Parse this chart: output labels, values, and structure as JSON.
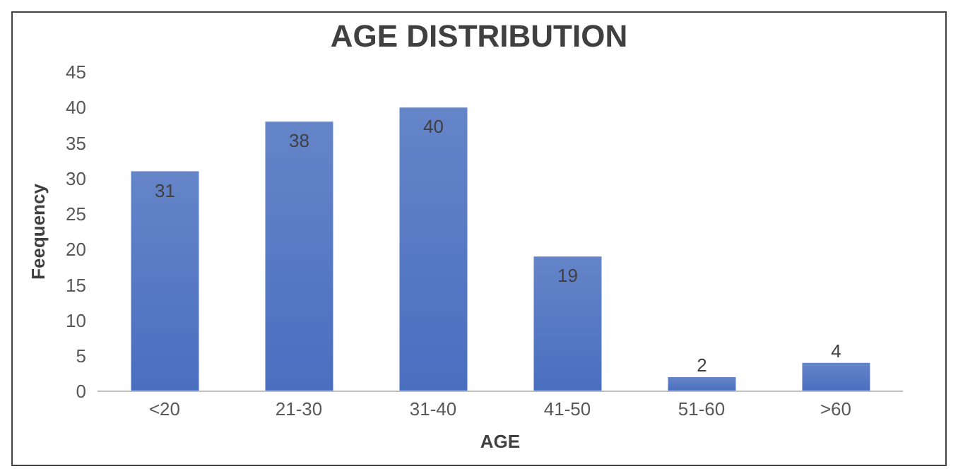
{
  "chart_data": {
    "type": "bar",
    "title": "AGE DISTRIBUTION",
    "xlabel": "AGE",
    "ylabel": "Feequency",
    "categories": [
      "<20",
      "21-30",
      "31-40",
      "41-50",
      "51-60",
      ">60"
    ],
    "values": [
      31,
      38,
      40,
      19,
      2,
      4
    ],
    "color": "#4a6fbf",
    "ylim": [
      0,
      45
    ],
    "yticks": [
      0,
      5,
      10,
      15,
      20,
      25,
      30,
      35,
      40,
      45
    ],
    "data_labels": true
  }
}
